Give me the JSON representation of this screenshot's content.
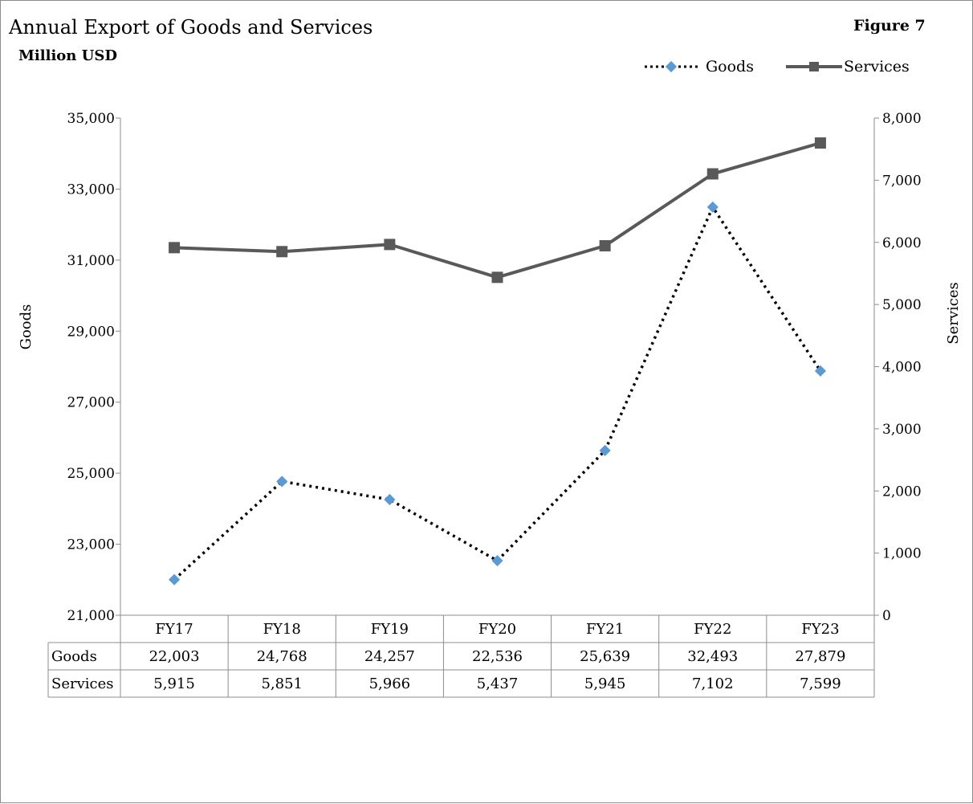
{
  "title": "Annual Export of Goods and Services",
  "subtitle": "Million USD",
  "figure_label": "Figure  7",
  "colors": {
    "goods_marker": "#5b9bd5",
    "goods_line": "#000000",
    "services": "#595959",
    "axis": "#8c8c8c"
  },
  "chart_data": {
    "type": "line",
    "title": "Annual Export of Goods and Services",
    "subtitle": "Million USD",
    "categories": [
      "FY17",
      "FY18",
      "FY19",
      "FY20",
      "FY21",
      "FY22",
      "FY23"
    ],
    "series": [
      {
        "name": "Goods",
        "axis": "left",
        "style": "dotted line with diamond markers",
        "values": [
          22003,
          24768,
          24257,
          22536,
          25639,
          32493,
          27879
        ],
        "labels": [
          "22,003",
          "24,768",
          "24,257",
          "22,536",
          "25,639",
          "32,493",
          "27,879"
        ]
      },
      {
        "name": "Services",
        "axis": "right",
        "style": "solid line with square markers",
        "values": [
          5915,
          5851,
          5966,
          5437,
          5945,
          7102,
          7599
        ],
        "labels": [
          "5,915",
          "5,851",
          "5,966",
          "5,437",
          "5,945",
          "7,102",
          "7,599"
        ]
      }
    ],
    "y_left": {
      "label": "Goods",
      "ylim": [
        21000,
        35000
      ],
      "ticks": [
        21000,
        23000,
        25000,
        27000,
        29000,
        31000,
        33000,
        35000
      ],
      "tick_labels": [
        "21,000",
        "23,000",
        "25,000",
        "27,000",
        "29,000",
        "31,000",
        "33,000",
        "35,000"
      ]
    },
    "y_right": {
      "label": "Services",
      "ylim": [
        0,
        8000
      ],
      "ticks": [
        0,
        1000,
        2000,
        3000,
        4000,
        5000,
        6000,
        7000,
        8000
      ],
      "tick_labels": [
        "0",
        "1,000",
        "2,000",
        "3,000",
        "4,000",
        "5,000",
        "6,000",
        "7,000",
        "8,000"
      ]
    },
    "grid": false,
    "legend_position": "top-right",
    "data_table": true
  }
}
